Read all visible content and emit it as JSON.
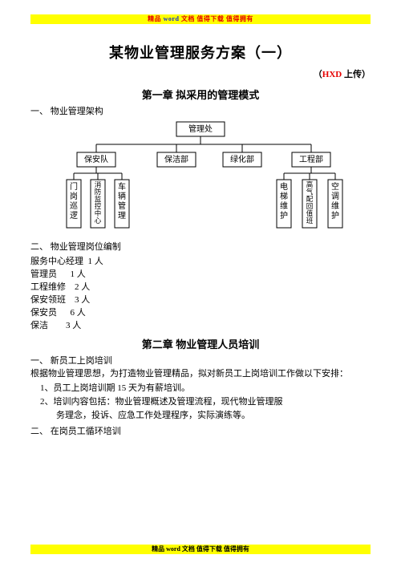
{
  "banner": {
    "text_parts": [
      "精品 ",
      "word ",
      "文档 值得下载 值得拥有"
    ],
    "bg_color": "#ffff00",
    "red": "#e60000",
    "blue": "#1030d0"
  },
  "title": "某物业管理服务方案（一）",
  "uploader_prefix": "（",
  "uploader_red": "HXD",
  "uploader_suffix": " 上传）",
  "chapter1": "第一章  拟采用的管理模式",
  "section1_1": "一、  物业管理架构",
  "orgchart": {
    "root": "管理处",
    "depts": [
      "保安队",
      "保洁部",
      "绿化部",
      "工程部"
    ],
    "leaves_security": [
      "门岗巡逻",
      "消防监控中心",
      "车辆管理"
    ],
    "leaves_eng": [
      "电梯维护",
      "高气配回值班",
      "空调维护"
    ],
    "box_stroke": "#000000",
    "line_stroke": "#000000",
    "font_family": "SimSun",
    "root_box": {
      "w": 60,
      "h": 18
    },
    "dept_box": {
      "w": 48,
      "h": 18
    },
    "leaf_box": {
      "w": 18,
      "h": 60
    }
  },
  "section1_2": "二、  物业管理岗位编制",
  "staffing": [
    {
      "role": "服务中心经理",
      "count": "1 人"
    },
    {
      "role": "管理员",
      "count": "1 人"
    },
    {
      "role": "工程维修",
      "count": "2 人"
    },
    {
      "role": "保安领班",
      "count": "3 人"
    },
    {
      "role": "保安员",
      "count": "6 人"
    },
    {
      "role": "保洁",
      "count": "3 人"
    }
  ],
  "chapter2": "第二章  物业管理人员培训",
  "section2_1": "一、 新员工上岗培训",
  "para2_1": "根据物业管理思想，为打造物业管理精品，拟对新员工上岗培训工作做以下安排：",
  "list2": [
    "1、员工上岗培训期 15 天为有薪培训。",
    "2、培训内容包括：物业管理概述及管理流程，现代物业管理服"
  ],
  "list2_cont": "务理念，投诉、应急工作处理程序，实际演练等。",
  "section2_2": "二、 在岗员工循环培训"
}
